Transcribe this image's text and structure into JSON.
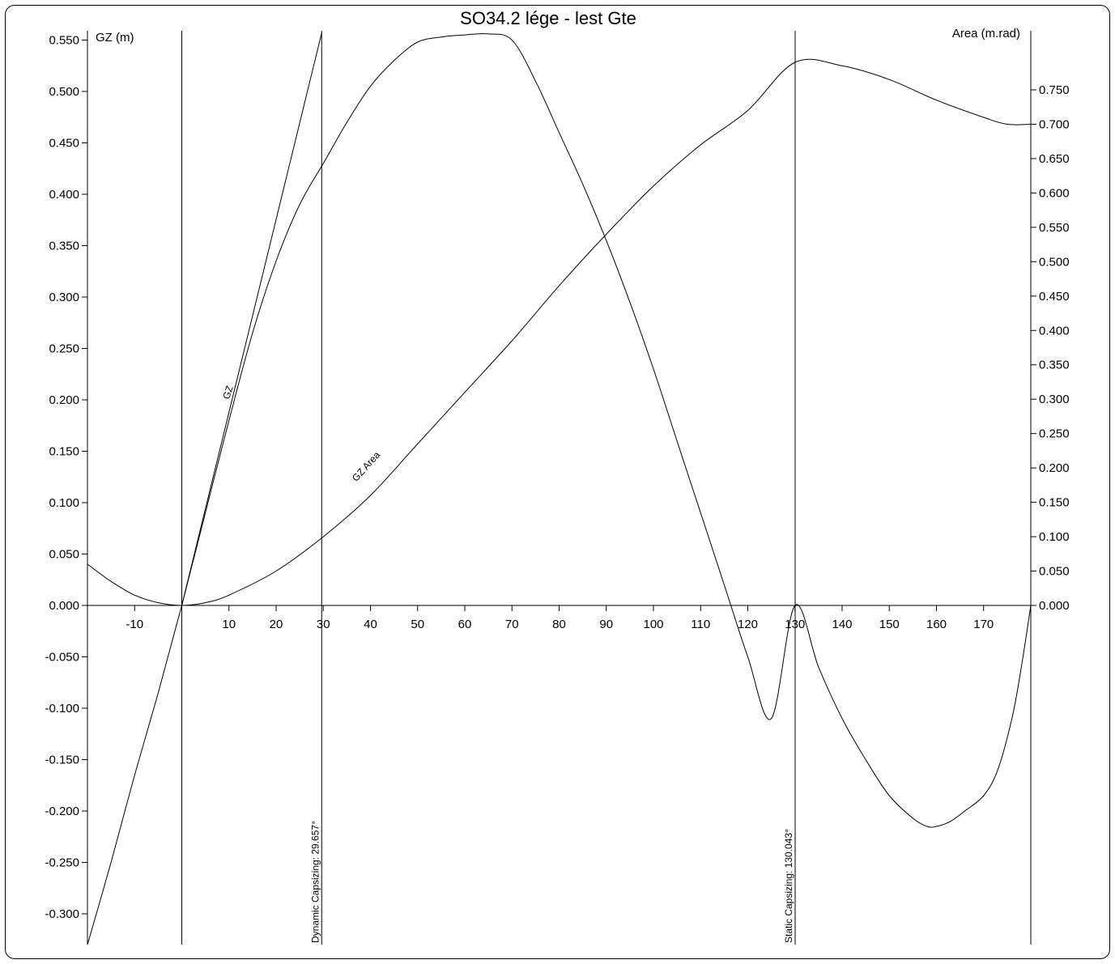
{
  "chart_data": {
    "type": "line",
    "title": "SO34.2 lége - lest Gte",
    "ylabel_left": "GZ (m)",
    "ylabel_right": "Area (m.rad)",
    "xlim": [
      -20,
      180
    ],
    "ylim_left": [
      -0.33,
      0.56
    ],
    "ylim_right": [
      0,
      0.805
    ],
    "x_ticks": [
      -10,
      10,
      20,
      30,
      40,
      50,
      60,
      70,
      80,
      90,
      100,
      110,
      120,
      130,
      140,
      150,
      160,
      170
    ],
    "y_left_ticks": [
      0.55,
      0.5,
      0.45,
      0.4,
      0.35,
      0.3,
      0.25,
      0.2,
      0.15,
      0.1,
      0.05,
      0.0,
      -0.05,
      -0.1,
      -0.15,
      -0.2,
      -0.25,
      -0.3
    ],
    "y_left_tick_labels": [
      "0.550",
      "0.500",
      "0.450",
      "0.400",
      "0.350",
      "0.300",
      "0.250",
      "0.200",
      "0.150",
      "0.100",
      "0.050",
      "0.000",
      "-0.050",
      "-0.100",
      "-0.150",
      "-0.200",
      "-0.250",
      "-0.300"
    ],
    "y_right_ticks": [
      0.75,
      0.7,
      0.65,
      0.6,
      0.55,
      0.5,
      0.45,
      0.4,
      0.35,
      0.3,
      0.25,
      0.2,
      0.15,
      0.1,
      0.05,
      0.0
    ],
    "y_right_tick_labels": [
      "0.750",
      "0.700",
      "0.650",
      "0.600",
      "0.550",
      "0.500",
      "0.450",
      "0.400",
      "0.350",
      "0.300",
      "0.250",
      "0.200",
      "0.150",
      "0.100",
      "0.050",
      "0.000"
    ],
    "series": [
      {
        "name": "GZ",
        "axis": "left",
        "x": [
          -20,
          -15,
          -10,
          -5,
          0,
          5,
          10,
          15,
          20,
          25,
          30,
          35,
          40,
          45,
          50,
          55,
          60,
          65,
          70,
          75,
          80,
          85,
          90,
          95,
          100,
          105,
          110,
          115,
          120,
          125,
          130,
          135,
          140,
          145,
          150,
          155,
          158,
          160,
          163,
          166,
          170,
          173,
          176,
          178,
          180
        ],
        "y": [
          -0.33,
          -0.25,
          -0.165,
          -0.085,
          0.0,
          0.09,
          0.18,
          0.265,
          0.335,
          0.39,
          0.43,
          0.47,
          0.505,
          0.53,
          0.548,
          0.553,
          0.555,
          0.556,
          0.55,
          0.51,
          0.46,
          0.41,
          0.355,
          0.295,
          0.23,
          0.16,
          0.09,
          0.02,
          -0.05,
          -0.11,
          0.0,
          -0.06,
          -0.11,
          -0.15,
          -0.185,
          -0.207,
          -0.215,
          -0.215,
          -0.21,
          -0.2,
          -0.185,
          -0.16,
          -0.11,
          -0.06,
          0.0
        ]
      },
      {
        "name": "GZ Area",
        "axis": "right",
        "x": [
          -20,
          -15,
          -10,
          -5,
          0,
          5,
          10,
          20,
          30,
          40,
          50,
          60,
          70,
          80,
          90,
          100,
          110,
          120,
          130,
          140,
          150,
          160,
          170,
          175,
          180
        ],
        "y": [
          0.06,
          0.035,
          0.015,
          0.004,
          0.0,
          0.004,
          0.015,
          0.05,
          0.1,
          0.16,
          0.235,
          0.31,
          0.385,
          0.465,
          0.54,
          0.61,
          0.67,
          0.72,
          0.79,
          0.785,
          0.765,
          0.735,
          0.71,
          0.7,
          0.7
        ]
      },
      {
        "name": "",
        "axis": "left",
        "x": [
          0,
          29.657
        ],
        "y": [
          0.0,
          0.557
        ]
      }
    ],
    "markers": [
      {
        "label": "Dynamic Capsizing: 29.657°",
        "x": 29.657
      },
      {
        "label": "Static Capsizing: 130.043°",
        "x": 130.043
      }
    ],
    "series_labels": [
      {
        "text": "GZ",
        "x": 10,
        "y": 0.2
      },
      {
        "text": "GZ Area",
        "x": 37,
        "y": 0.12
      }
    ]
  }
}
